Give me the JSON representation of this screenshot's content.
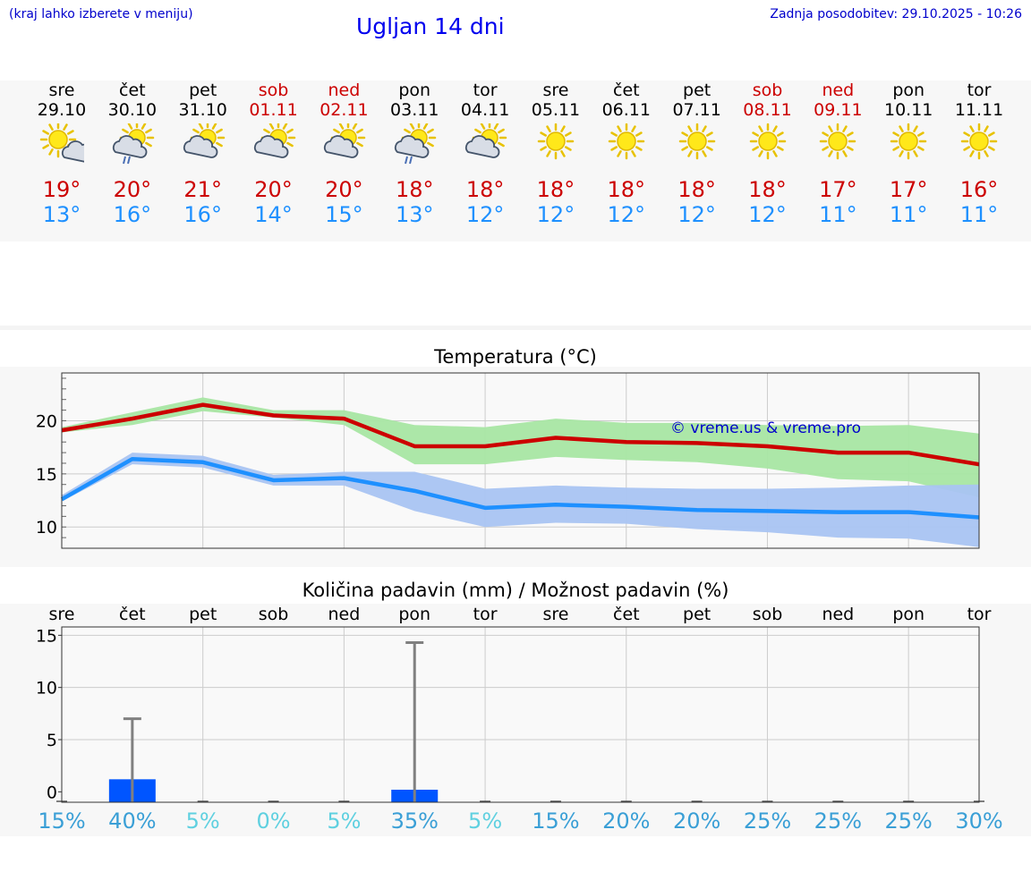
{
  "header": {
    "hint": "(kraj lahko izberete v meniju)",
    "title": "Ugljan 14 dni",
    "updated": "Zadnja posodobitev: 29.10.2025 - 10:26"
  },
  "days": [
    {
      "day": "sre",
      "date": "29.10",
      "icon": "sun-cloud-icon",
      "tmax": "19°",
      "tmin": "13°",
      "weekend": false
    },
    {
      "day": "čet",
      "date": "30.10",
      "icon": "cloud-sun-rain-icon",
      "tmax": "20°",
      "tmin": "16°",
      "weekend": false
    },
    {
      "day": "pet",
      "date": "31.10",
      "icon": "cloud-sun-icon",
      "tmax": "21°",
      "tmin": "16°",
      "weekend": false
    },
    {
      "day": "sob",
      "date": "01.11",
      "icon": "cloud-sun-icon",
      "tmax": "20°",
      "tmin": "14°",
      "weekend": true
    },
    {
      "day": "ned",
      "date": "02.11",
      "icon": "cloud-sun-icon",
      "tmax": "20°",
      "tmin": "15°",
      "weekend": true
    },
    {
      "day": "pon",
      "date": "03.11",
      "icon": "cloud-sun-rain-icon",
      "tmax": "18°",
      "tmin": "13°",
      "weekend": false
    },
    {
      "day": "tor",
      "date": "04.11",
      "icon": "cloud-sun-icon",
      "tmax": "18°",
      "tmin": "12°",
      "weekend": false
    },
    {
      "day": "sre",
      "date": "05.11",
      "icon": "sun-icon",
      "tmax": "18°",
      "tmin": "12°",
      "weekend": false
    },
    {
      "day": "čet",
      "date": "06.11",
      "icon": "sun-icon",
      "tmax": "18°",
      "tmin": "12°",
      "weekend": false
    },
    {
      "day": "pet",
      "date": "07.11",
      "icon": "sun-icon",
      "tmax": "18°",
      "tmin": "12°",
      "weekend": false
    },
    {
      "day": "sob",
      "date": "08.11",
      "icon": "sun-icon",
      "tmax": "18°",
      "tmin": "12°",
      "weekend": true
    },
    {
      "day": "ned",
      "date": "09.11",
      "icon": "sun-icon",
      "tmax": "17°",
      "tmin": "11°",
      "weekend": true
    },
    {
      "day": "pon",
      "date": "10.11",
      "icon": "sun-icon",
      "tmax": "17°",
      "tmin": "11°",
      "weekend": false
    },
    {
      "day": "tor",
      "date": "11.11",
      "icon": "sun-icon",
      "tmax": "16°",
      "tmin": "11°",
      "weekend": false
    }
  ],
  "colors": {
    "tmax": "#cc0000",
    "tmin": "#1e90ff",
    "max_band": "#a8e6a3",
    "min_band": "#a9c4f2",
    "bar": "#0055ff"
  },
  "chart_data": [
    {
      "type": "line",
      "title": "Temperatura (°C)",
      "watermark": "© vreme.us & vreme.pro",
      "x": [
        0,
        1,
        2,
        3,
        4,
        5,
        6,
        7,
        8,
        9,
        10,
        11,
        12,
        13
      ],
      "ylim": [
        8,
        24.5
      ],
      "yticks": [
        10,
        15,
        20
      ],
      "series": [
        {
          "name": "max",
          "values": [
            19.1,
            20.2,
            21.5,
            20.5,
            20.2,
            17.6,
            17.6,
            18.4,
            18.0,
            17.9,
            17.6,
            17.0,
            17.0,
            15.9
          ]
        },
        {
          "name": "min",
          "values": [
            12.6,
            16.4,
            16.1,
            14.4,
            14.6,
            13.4,
            11.8,
            12.1,
            11.9,
            11.6,
            11.5,
            11.4,
            11.4,
            10.9
          ]
        }
      ],
      "bands": [
        {
          "name": "max-range",
          "low": [
            18.9,
            19.6,
            20.9,
            20.3,
            19.6,
            15.9,
            15.9,
            16.6,
            16.3,
            16.1,
            15.5,
            14.5,
            14.3,
            12.8
          ],
          "high": [
            19.4,
            20.8,
            22.2,
            21.0,
            21.0,
            19.6,
            19.4,
            20.2,
            19.8,
            19.8,
            19.6,
            19.5,
            19.6,
            18.8
          ]
        },
        {
          "name": "min-range",
          "low": [
            12.4,
            15.9,
            15.6,
            13.9,
            13.9,
            11.5,
            10.0,
            10.4,
            10.3,
            9.8,
            9.5,
            9.0,
            8.9,
            8.1
          ],
          "high": [
            13.0,
            17.0,
            16.7,
            14.9,
            15.2,
            15.2,
            13.6,
            13.9,
            13.7,
            13.6,
            13.6,
            13.7,
            13.9,
            14.0
          ]
        }
      ]
    },
    {
      "type": "bar",
      "title": "Količina padavin (mm) / Možnost padavin (%)",
      "categories": [
        "sre",
        "čet",
        "pet",
        "sob",
        "ned",
        "pon",
        "tor",
        "sre",
        "čet",
        "pet",
        "sob",
        "ned",
        "pon",
        "tor"
      ],
      "ylim": [
        -1,
        15.8
      ],
      "yticks": [
        0,
        5,
        10,
        15
      ],
      "values": [
        0,
        1.2,
        0,
        0,
        0,
        0.2,
        0,
        0,
        0,
        0,
        0,
        0,
        0,
        0
      ],
      "error_high": [
        0,
        7.0,
        0,
        0,
        0,
        14.3,
        0,
        0,
        0,
        0,
        0,
        0,
        0,
        0
      ],
      "probability": [
        "15%",
        "40%",
        "5%",
        "0%",
        "5%",
        "35%",
        "5%",
        "15%",
        "20%",
        "20%",
        "25%",
        "25%",
        "25%",
        "30%"
      ],
      "probability_values": [
        15,
        40,
        5,
        0,
        5,
        35,
        5,
        15,
        20,
        20,
        25,
        25,
        25,
        30
      ]
    }
  ]
}
